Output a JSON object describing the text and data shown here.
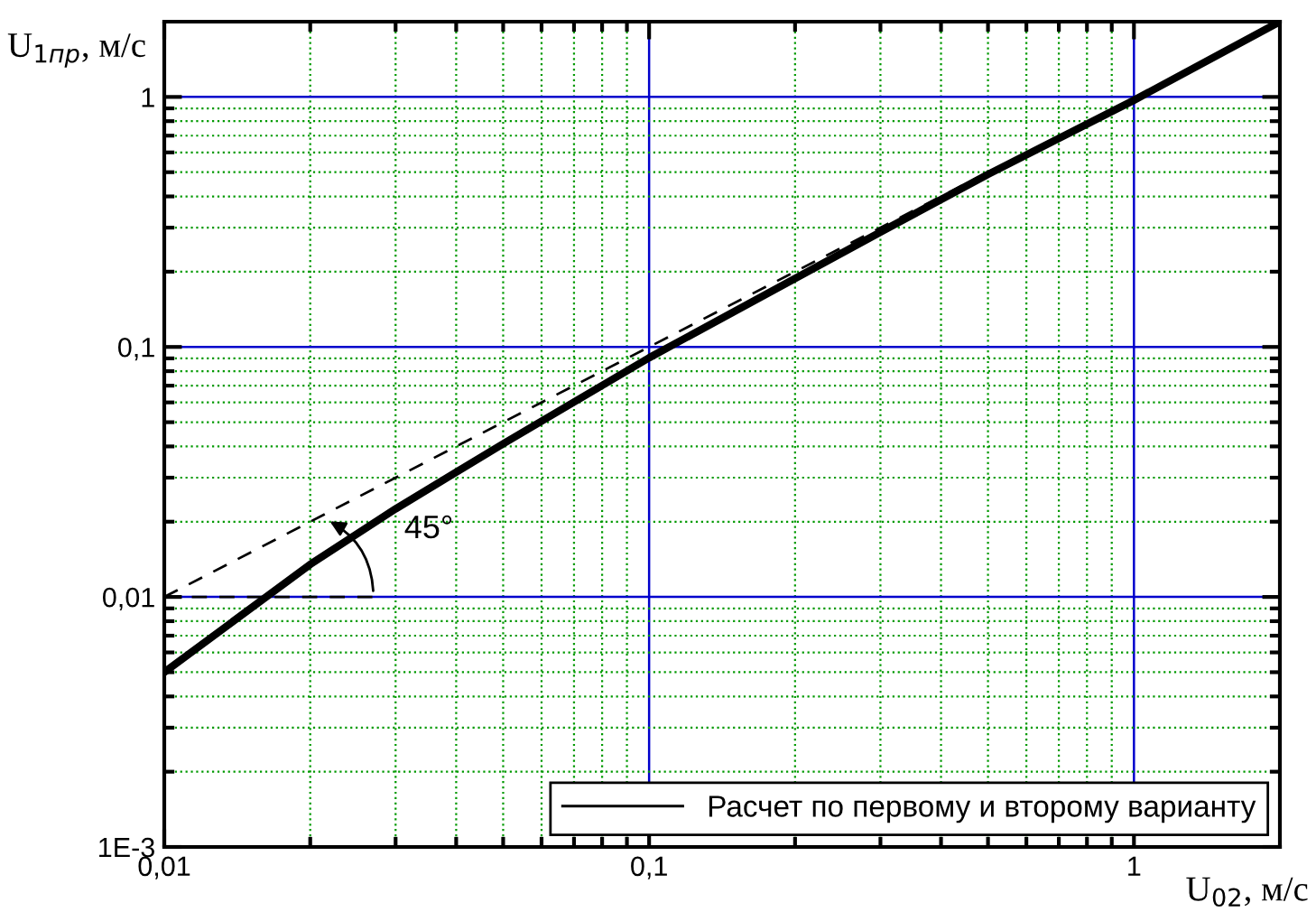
{
  "chart_data": {
    "type": "line",
    "xlabel": "U$_{02}$, м/с",
    "ylabel": "U$_{1пр}$, м/с",
    "log": "xy",
    "xlim": [
      0.01,
      2
    ],
    "ylim": [
      0.001,
      2
    ],
    "xticks": [
      {
        "value": 0.01,
        "label": "0,01"
      },
      {
        "value": 0.02,
        "label": null
      },
      {
        "value": 0.03,
        "label": null
      },
      {
        "value": 0.04,
        "label": null
      },
      {
        "value": 0.05,
        "label": null
      },
      {
        "value": 0.06,
        "label": null
      },
      {
        "value": 0.07,
        "label": null
      },
      {
        "value": 0.08,
        "label": null
      },
      {
        "value": 0.09,
        "label": null
      },
      {
        "value": 0.1,
        "label": "0,1"
      },
      {
        "value": 0.2,
        "label": null
      },
      {
        "value": 0.3,
        "label": null
      },
      {
        "value": 0.4,
        "label": null
      },
      {
        "value": 0.5,
        "label": null
      },
      {
        "value": 0.6,
        "label": null
      },
      {
        "value": 0.7,
        "label": null
      },
      {
        "value": 0.8,
        "label": null
      },
      {
        "value": 0.9,
        "label": null
      },
      1
    ],
    "yticks": [
      {
        "value": 0.001,
        "label": "1E-3"
      },
      {
        "value": 0.002,
        "label": null
      },
      {
        "value": 0.003,
        "label": null
      },
      {
        "value": 0.004,
        "label": null
      },
      {
        "value": 0.005,
        "label": null
      },
      {
        "value": 0.006,
        "label": null
      },
      {
        "value": 0.007,
        "label": null
      },
      {
        "value": 0.008,
        "label": null
      },
      {
        "value": 0.009,
        "label": null
      },
      {
        "value": 0.01,
        "label": "0,01"
      },
      {
        "value": 0.02,
        "label": null
      },
      {
        "value": 0.03,
        "label": null
      },
      {
        "value": 0.04,
        "label": null
      },
      {
        "value": 0.05,
        "label": null
      },
      {
        "value": 0.06,
        "label": null
      },
      {
        "value": 0.07,
        "label": null
      },
      {
        "value": 0.08,
        "label": null
      },
      {
        "value": 0.09,
        "label": null
      },
      {
        "value": 0.1,
        "label": "0,1"
      },
      {
        "value": 0.2,
        "label": null
      },
      {
        "value": 0.3,
        "label": null
      },
      {
        "value": 0.4,
        "label": null
      },
      {
        "value": 0.5,
        "label": null
      },
      {
        "value": 0.6,
        "label": null
      },
      {
        "value": 0.7,
        "label": null
      },
      {
        "value": 0.8,
        "label": null
      },
      {
        "value": 0.9,
        "label": null
      },
      1
    ],
    "grid": true,
    "legend": "bottom right",
    "marker": "none",
    "annotations": [
      "45°"
    ],
    "series": [
      {
        "name": "Расчет по первому и второму варианту",
        "color": "#000000",
        "line_style": "solid",
        "x": [
          0.01,
          0.02,
          0.03,
          0.05,
          0.1,
          0.3,
          0.5,
          1,
          2
        ],
        "values": [
          0.005,
          0.0135,
          0.0225,
          0.041,
          0.0905,
          0.288,
          0.49,
          0.97,
          2
        ]
      },
      {
        "color": "#000000",
        "line_style": "dashed",
        "x": [
          0.01,
          0.5
        ],
        "values": [
          0.01,
          0.5
        ]
      },
      {
        "color": "#000000",
        "line_style": "dashed",
        "x": [
          0.01,
          0.027
        ],
        "values": [
          0.01,
          0.01
        ]
      }
    ]
  }
}
